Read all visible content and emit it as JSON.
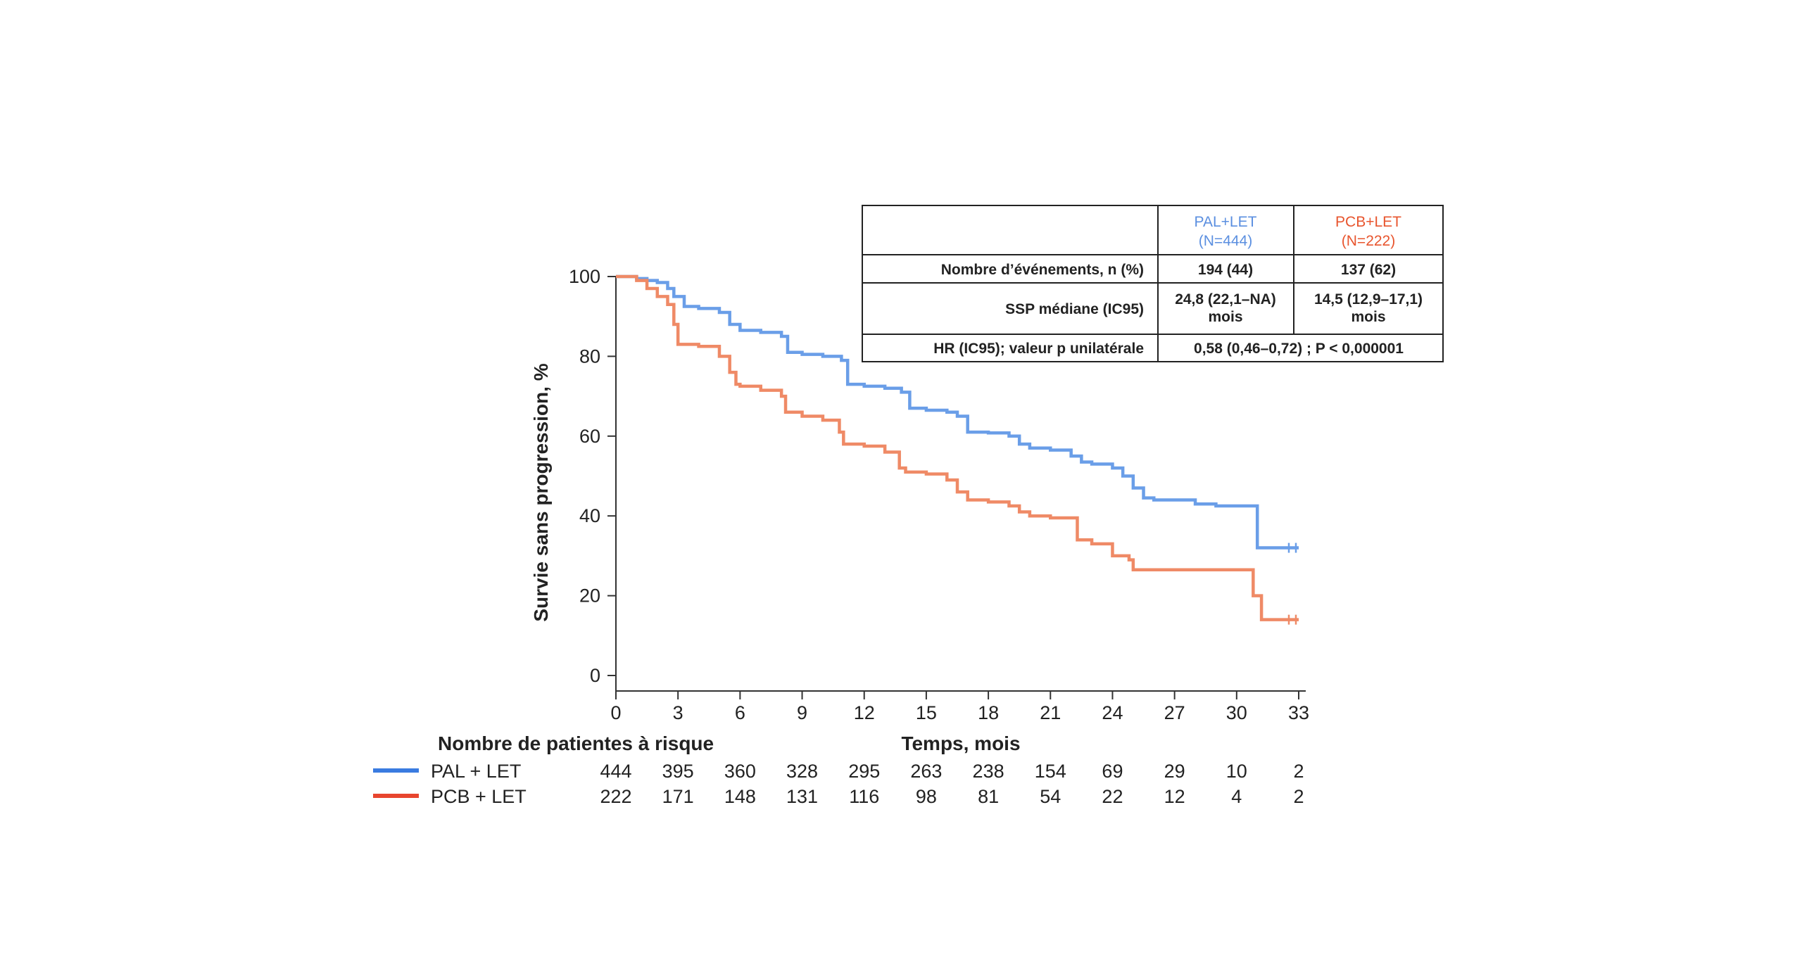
{
  "chart_data": {
    "type": "line",
    "subtype": "kaplan-meier",
    "title": "",
    "ylabel": "Survie sans progression, %",
    "xlabel": "Temps, mois",
    "xlim": [
      0,
      33
    ],
    "ylim": [
      0,
      100
    ],
    "xticks": [
      0,
      3,
      6,
      9,
      12,
      15,
      18,
      21,
      24,
      27,
      30,
      33
    ],
    "yticks": [
      0,
      20,
      40,
      60,
      80,
      100
    ],
    "grid": false,
    "series": [
      {
        "name": "PAL + LET",
        "color": "#6a9ee8",
        "x": [
          0,
          0.5,
          1,
          1.5,
          2,
          2.5,
          2.8,
          3.3,
          4,
          5,
          5.5,
          6,
          7,
          8,
          8.3,
          9,
          10,
          10.9,
          11.2,
          12,
          13,
          13.8,
          14.2,
          15,
          16,
          16.5,
          17,
          18,
          19,
          19.5,
          20,
          21,
          22,
          22.5,
          23,
          24,
          24.5,
          25,
          25.5,
          26,
          27,
          28,
          29,
          30,
          30.9,
          31,
          32,
          33
        ],
        "y": [
          100,
          100,
          99.5,
          99,
          98.5,
          97,
          95,
          92.5,
          92,
          91,
          88,
          86.5,
          86,
          85,
          81,
          80.5,
          80,
          79,
          73,
          72.5,
          72,
          71,
          67,
          66.5,
          66,
          65,
          61,
          60.8,
          60,
          58,
          57,
          56.5,
          55,
          53.5,
          53,
          52,
          50,
          47,
          44.5,
          44,
          44,
          43,
          42.5,
          42.5,
          42.5,
          32,
          32,
          32
        ]
      },
      {
        "name": "PCB + LET",
        "color": "#ef8a66",
        "x": [
          0,
          1,
          1.5,
          2,
          2.5,
          2.8,
          3,
          4,
          5,
          5.5,
          5.8,
          6,
          7,
          8,
          8.2,
          9,
          10,
          10.8,
          11,
          12,
          13,
          13.7,
          14,
          15,
          16,
          16.5,
          17,
          18,
          19,
          19.5,
          20,
          21,
          22,
          22.3,
          23,
          24,
          24.8,
          25,
          26,
          27,
          28,
          29,
          30,
          30.6,
          30.8,
          31,
          31.2,
          32,
          33
        ],
        "y": [
          100,
          99,
          97,
          95,
          93,
          88,
          83,
          82.5,
          80,
          76,
          73,
          72.5,
          71.5,
          70,
          66,
          65,
          64,
          61,
          58,
          57.5,
          56,
          52,
          51,
          50.5,
          49,
          46,
          44,
          43.5,
          42.5,
          41,
          40,
          39.5,
          39.5,
          34,
          33,
          30,
          29,
          26.5,
          26.5,
          26.5,
          26.5,
          26.5,
          26.5,
          26.5,
          20,
          20,
          14,
          14,
          14
        ]
      }
    ]
  },
  "stats_table": {
    "header_pal": [
      "PAL+LET",
      "(N=444)"
    ],
    "header_pcb": [
      "PCB+LET",
      "(N=222)"
    ],
    "row1_label": "Nombre d’événements, n (%)",
    "row1_pal": "194 (44)",
    "row1_pcb": "137 (62)",
    "row2_label": "SSP médiane (IC95)",
    "row2_pal": [
      "24,8 (22,1–NA)",
      "mois"
    ],
    "row2_pcb": [
      "14,5 (12,9–17,1)",
      "mois"
    ],
    "row3_label": "HR (IC95); valeur p unilatérale",
    "row3_value": "0,58 (0,46–0,72) ; P < 0,000001"
  },
  "risk_table": {
    "title": "Nombre de patientes à risque",
    "rows": [
      {
        "label": "PAL + LET",
        "color": "#3a7be0",
        "values": [
          "444",
          "395",
          "360",
          "328",
          "295",
          "263",
          "238",
          "154",
          "69",
          "29",
          "10",
          "2"
        ]
      },
      {
        "label": "PCB + LET",
        "color": "#e8452e",
        "values": [
          "222",
          "171",
          "148",
          "131",
          "116",
          "98",
          "81",
          "54",
          "22",
          "12",
          "4",
          "2"
        ]
      }
    ]
  }
}
